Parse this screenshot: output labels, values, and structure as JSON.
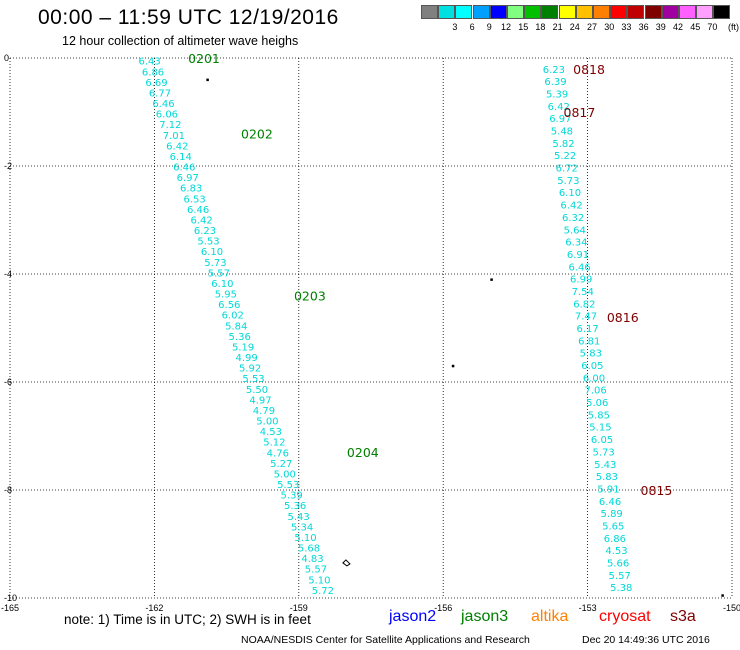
{
  "title": "00:00 – 11:59 UTC 12/19/2016",
  "subtitle": "12 hour collection of altimeter wave heighs",
  "legend": {
    "swatches": [
      {
        "label": "",
        "color": "#808080"
      },
      {
        "label": "3",
        "color": "#00e0e0"
      },
      {
        "label": "6",
        "color": "#00ffff"
      },
      {
        "label": "9",
        "color": "#00a0ff"
      },
      {
        "label": "12",
        "color": "#0000ff"
      },
      {
        "label": "15",
        "color": "#80ff80"
      },
      {
        "label": "18",
        "color": "#00c000"
      },
      {
        "label": "21",
        "color": "#008000"
      },
      {
        "label": "24",
        "color": "#ffff00"
      },
      {
        "label": "27",
        "color": "#ffc000"
      },
      {
        "label": "30",
        "color": "#ff8000"
      },
      {
        "label": "33",
        "color": "#ff0000"
      },
      {
        "label": "36",
        "color": "#c00000"
      },
      {
        "label": "39",
        "color": "#800000"
      },
      {
        "label": "42",
        "color": "#a000a0"
      },
      {
        "label": "45",
        "color": "#ff60ff"
      },
      {
        "label": "70",
        "color": "#ffa0ff"
      },
      {
        "label": "",
        "color": "#000000"
      }
    ],
    "units": "(ft)"
  },
  "note": "note: 1) Time is in UTC; 2) SWH is in feet",
  "satellites": [
    {
      "name": "jason2",
      "color": "#0000ff"
    },
    {
      "name": "jason3",
      "color": "#008000"
    },
    {
      "name": "altika",
      "color": "#ff8000"
    },
    {
      "name": "cryosat",
      "color": "#ff0000"
    },
    {
      "name": "s3a",
      "color": "#800000"
    }
  ],
  "credit": "NOAA/NESDIS Center for Satellite Applications and Research",
  "timestamp": "Dec 20 14:49:36 UTC 2016",
  "chart_data": {
    "type": "scatter",
    "xlim": [
      -165,
      -150
    ],
    "ylim": [
      -10,
      0
    ],
    "xticks": [
      "-165",
      "-162",
      "-159",
      "-156",
      "-153",
      "-150"
    ],
    "yticks": [
      "0",
      "-2",
      "-4",
      "-6",
      "-8",
      "-10"
    ],
    "grid": true,
    "series": [
      {
        "name": "jason3",
        "color": "#00d8d8",
        "label_color": "#008000",
        "start": [
          -162.1,
          -0.05
        ],
        "end": [
          -158.5,
          -9.85
        ],
        "values": [
          "6.43",
          "6.86",
          "6.69",
          "6.77",
          "6.46",
          "6.06",
          "7.12",
          "7.01",
          "6.42",
          "6.14",
          "6.46",
          "6.97",
          "6.83",
          "6.53",
          "6.46",
          "6.42",
          "6.23",
          "5.53",
          "6.10",
          "5.73",
          "5.57",
          "6.10",
          "5.95",
          "6.56",
          "6.02",
          "5.84",
          "5.36",
          "5.19",
          "4.99",
          "5.92",
          "5.53",
          "5.50",
          "4.97",
          "4.79",
          "5.00",
          "4.53",
          "5.12",
          "4.76",
          "5.27",
          "5.00",
          "5.53",
          "5.39",
          "5.36",
          "5.43",
          "5.34",
          "5.10",
          "5.68",
          "4.83",
          "5.57",
          "5.10",
          "5.72"
        ],
        "time_labels": [
          {
            "text": "0201",
            "lon": -161.3,
            "lat": 0.0
          },
          {
            "text": "0202",
            "lon": -160.2,
            "lat": -1.4
          },
          {
            "text": "0203",
            "lon": -159.1,
            "lat": -4.4
          },
          {
            "text": "0204",
            "lon": -158.0,
            "lat": -7.3
          }
        ]
      },
      {
        "name": "s3a",
        "color": "#00d8d8",
        "label_color": "#800000",
        "start": [
          -153.7,
          -0.2
        ],
        "end": [
          -152.3,
          -9.8
        ],
        "values": [
          "6.23",
          "6.39",
          "5.39",
          "6.42",
          "6.97",
          "5.48",
          "5.82",
          "5.22",
          "6.72",
          "5.73",
          "6.10",
          "6.42",
          "6.32",
          "5.64",
          "6.34",
          "6.91",
          "6.46",
          "6.99",
          "7.54",
          "6.82",
          "7.47",
          "6.17",
          "6.81",
          "5.83",
          "6.05",
          "6.00",
          "7.06",
          "5.06",
          "5.85",
          "5.15",
          "6.05",
          "5.73",
          "5.43",
          "5.83",
          "5.91",
          "6.46",
          "5.89",
          "5.65",
          "6.86",
          "4.53",
          "5.66",
          "5.57",
          "5.38"
        ],
        "time_labels": [
          {
            "text": "0818",
            "lon": -153.3,
            "lat": -0.2
          },
          {
            "text": "0817",
            "lon": -153.5,
            "lat": -1.0
          },
          {
            "text": "0816",
            "lon": -152.6,
            "lat": -4.8
          },
          {
            "text": "0815",
            "lon": -151.9,
            "lat": -8.0
          }
        ]
      }
    ]
  }
}
